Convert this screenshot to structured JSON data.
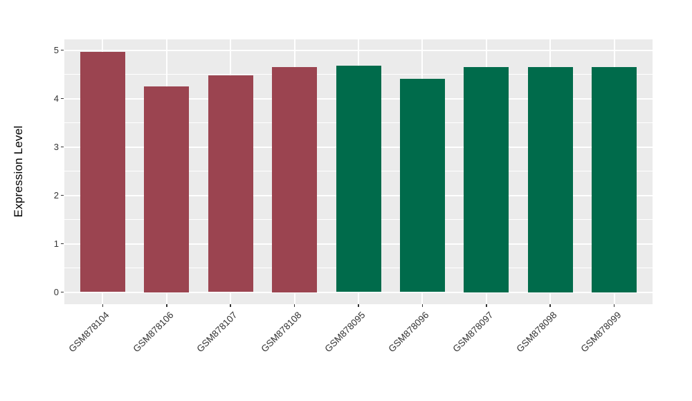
{
  "chart_data": {
    "type": "bar",
    "title": "",
    "xlabel": "",
    "ylabel": "Expression Level",
    "categories": [
      "GSM878104",
      "GSM878106",
      "GSM878107",
      "GSM878108",
      "GSM878095",
      "GSM878096",
      "GSM878097",
      "GSM878098",
      "GSM878099"
    ],
    "values": [
      4.97,
      4.25,
      4.48,
      4.65,
      4.68,
      4.41,
      4.65,
      4.65,
      4.65
    ],
    "bar_colors": [
      "#9B4450",
      "#9B4450",
      "#9B4450",
      "#9B4450",
      "#006B4B",
      "#006B4B",
      "#006B4B",
      "#006B4B",
      "#006B4B"
    ],
    "group_colors": {
      "left_group": "#9B4450",
      "right_group": "#006B4B"
    },
    "y_ticks": [
      0,
      1,
      2,
      3,
      4,
      5
    ],
    "ylim": [
      -0.25,
      5.22
    ],
    "grid": true,
    "legend_position": "none",
    "panel_background": "#EBEBEB",
    "grid_color": "#FFFFFF",
    "axis_text_color": "#333333"
  }
}
